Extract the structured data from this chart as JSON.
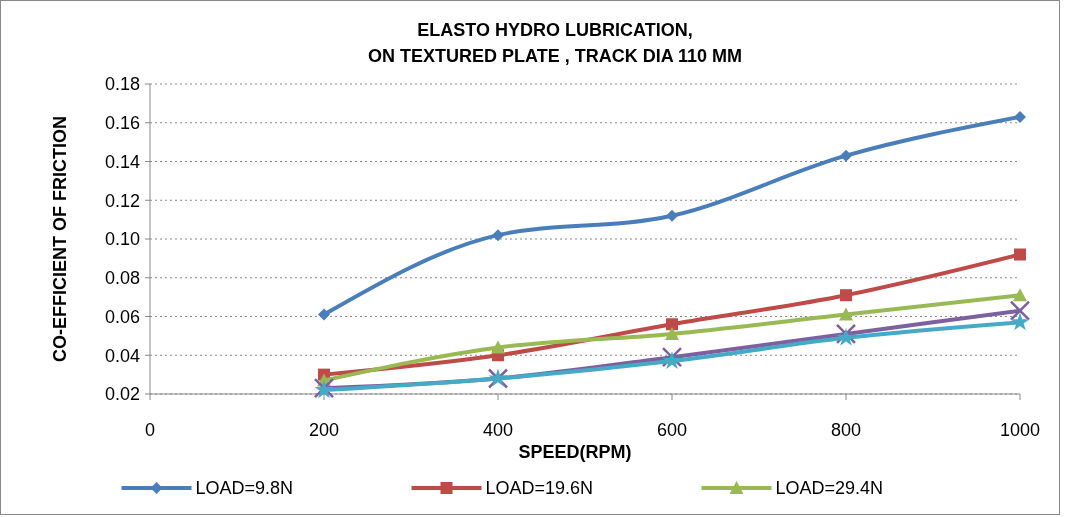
{
  "chart_data": {
    "type": "line",
    "title": "ELASTO HYDRO LUBRICATION,\nON TEXTURED PLATE , TRACK DIA 110 MM",
    "xlabel": "SPEED(RPM)",
    "ylabel": "CO-EFFICIENT OF FRICTION",
    "x": [
      200,
      400,
      600,
      800,
      1000
    ],
    "series": [
      {
        "name": "LOAD=9.8N",
        "color": "#4a7ebb",
        "marker": "diamond",
        "values": [
          0.061,
          0.102,
          0.112,
          0.143,
          0.163
        ]
      },
      {
        "name": "LOAD=19.6N",
        "color": "#be4b48",
        "marker": "square",
        "values": [
          0.03,
          0.04,
          0.056,
          0.071,
          0.092
        ]
      },
      {
        "name": "LOAD=29.4N",
        "color": "#98b954",
        "marker": "triangle",
        "values": [
          0.027,
          0.044,
          0.051,
          0.061,
          0.071
        ]
      },
      {
        "color": "#7d60a0",
        "marker": "cross",
        "values": [
          0.023,
          0.028,
          0.039,
          0.051,
          0.063
        ]
      },
      {
        "color": "#46aac5",
        "marker": "star",
        "values": [
          0.022,
          0.028,
          0.037,
          0.049,
          0.057
        ]
      }
    ],
    "xlim": [
      0,
      1000
    ],
    "xticks": [
      0,
      200,
      400,
      600,
      800,
      1000
    ],
    "ylim": [
      0.02,
      0.18
    ],
    "yticks": [
      {
        "value": 0.02,
        "label": "0.02"
      },
      {
        "value": 0.04,
        "label": "0.04"
      },
      {
        "value": 0.06,
        "label": "0.06"
      },
      {
        "value": 0.08,
        "label": "0.08"
      },
      {
        "value": 0.1,
        "label": "0.10"
      },
      {
        "value": 0.12,
        "label": "0.12"
      },
      {
        "value": 0.14,
        "label": "0.14"
      },
      {
        "value": 0.16,
        "label": "0.16"
      },
      {
        "value": 0.18,
        "label": "0.18"
      }
    ],
    "grid": "y",
    "legend": "bottom",
    "line_style": "solid"
  }
}
